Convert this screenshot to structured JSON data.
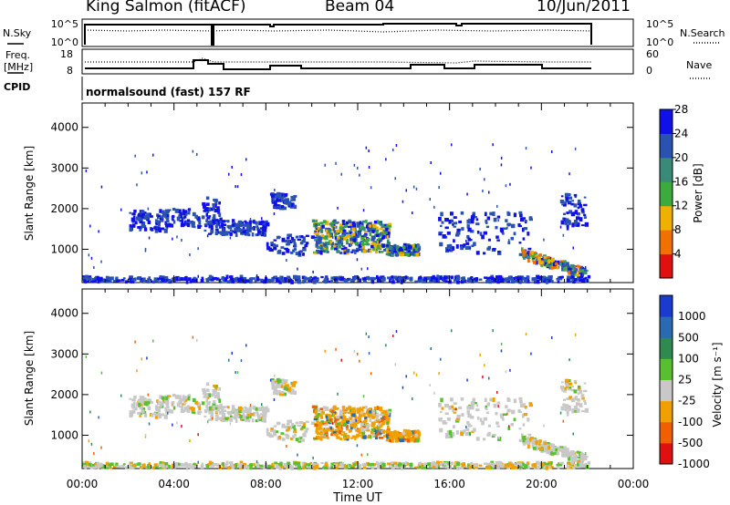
{
  "header": {
    "station": "King Salmon (fitACF)",
    "beam": "Beam 04",
    "date": "10/Jun/2011"
  },
  "top_panels": {
    "nsky_label": "N.Sky",
    "nsky_ticks": [
      "10^5",
      "10^0"
    ],
    "nsearch_label": "N.Search",
    "nsearch_ticks": [
      "10^5",
      "10^0"
    ],
    "freq_label": "Freq.",
    "freq_unit": "[MHz]",
    "freq_ticks": [
      "18",
      "8"
    ],
    "nave_label": "Nave",
    "nave_ticks": [
      "60",
      "0"
    ],
    "cpid_label": "CPID",
    "cpid_text": "normalsound (fast) 157 RF"
  },
  "chart_data": [
    {
      "type": "heatmap",
      "name": "power",
      "ylabel": "Slant Range [km]",
      "yticks": [
        1000,
        2000,
        3000,
        4000
      ],
      "ylim": [
        180,
        4600
      ],
      "xlim": [
        0,
        24
      ],
      "colorbar_label": "Power [dB]",
      "colorbar_ticks": [
        "4",
        "8",
        "12",
        "16",
        "20",
        "24",
        "28"
      ],
      "colorbar_colors": [
        "#1010e8",
        "#2a52b0",
        "#3a8a78",
        "#3caa3c",
        "#f0b000",
        "#f07000",
        "#e01010"
      ],
      "data_end_hour": 22.0
    },
    {
      "type": "heatmap",
      "name": "velocity",
      "ylabel": "Slant Range [km]",
      "yticks": [
        1000,
        2000,
        3000,
        4000
      ],
      "ylim": [
        180,
        4600
      ],
      "xlim": [
        0,
        24
      ],
      "xlabel": "Time UT",
      "xticks": [
        "00:00",
        "04:00",
        "08:00",
        "12:00",
        "16:00",
        "20:00",
        "00:00"
      ],
      "colorbar_label": "Velocity [m s⁻¹]",
      "colorbar_ticks": [
        "1000",
        "500",
        "100",
        "25",
        "-25",
        "-100",
        "-500",
        "-1000"
      ],
      "colorbar_colors": [
        "#1a3ad0",
        "#2a6ab0",
        "#2e8a50",
        "#58c030",
        "#c8c8c8",
        "#f0a000",
        "#f06000",
        "#e01010"
      ],
      "data_end_hour": 22.0
    }
  ]
}
